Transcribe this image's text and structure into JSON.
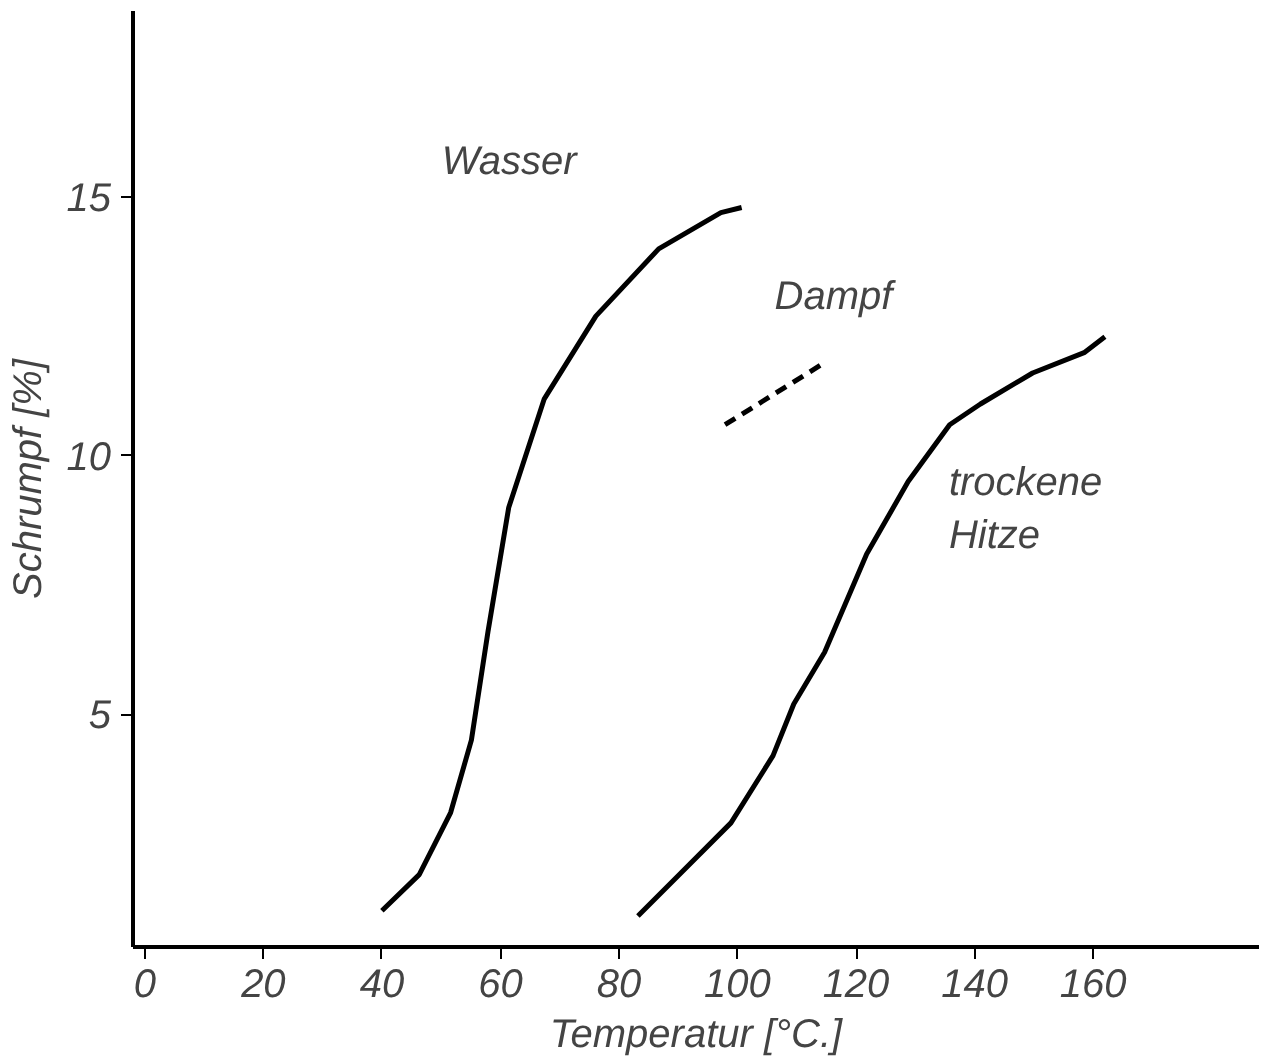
{
  "chart_data": {
    "type": "line",
    "xlabel": "Temperatur [°C.]",
    "ylabel": "Schrumpf [%]",
    "xlim": [
      -2,
      188
    ],
    "ylim": [
      0.5,
      18.6
    ],
    "xticks": [
      0,
      20,
      40,
      60,
      80,
      100,
      120,
      140,
      160
    ],
    "yticks": [
      5,
      10,
      15
    ],
    "grid": false,
    "legend": false,
    "marker": "none",
    "series": [
      {
        "name": "Wasser",
        "color": "#000000",
        "line_style": "solid",
        "x": [
          40,
          46.3,
          51.6,
          55.1,
          57.9,
          61.4,
          67.4,
          76.1,
          86.7,
          97.2,
          100.7
        ],
        "values": [
          1.2,
          1.9,
          3.1,
          4.5,
          6.6,
          9.0,
          11.1,
          12.7,
          14.0,
          14.7,
          14.8
        ]
      },
      {
        "name": "Dampf",
        "color": "#000000",
        "line_style": "dashed",
        "x": [
          97.9,
          114.7
        ],
        "values": [
          10.6,
          11.8
        ]
      },
      {
        "name": "trockene\nHitze",
        "color": "#000000",
        "line_style": "solid",
        "x": [
          83.2,
          90.2,
          98.9,
          106,
          109.5,
          114.7,
          121.8,
          128.8,
          135.8,
          141,
          149.8,
          158.6,
          162
        ],
        "values": [
          1.1,
          1.9,
          2.9,
          4.2,
          5.2,
          6.2,
          8.1,
          9.5,
          10.6,
          11.0,
          11.6,
          12.0,
          12.3
        ]
      }
    ]
  }
}
